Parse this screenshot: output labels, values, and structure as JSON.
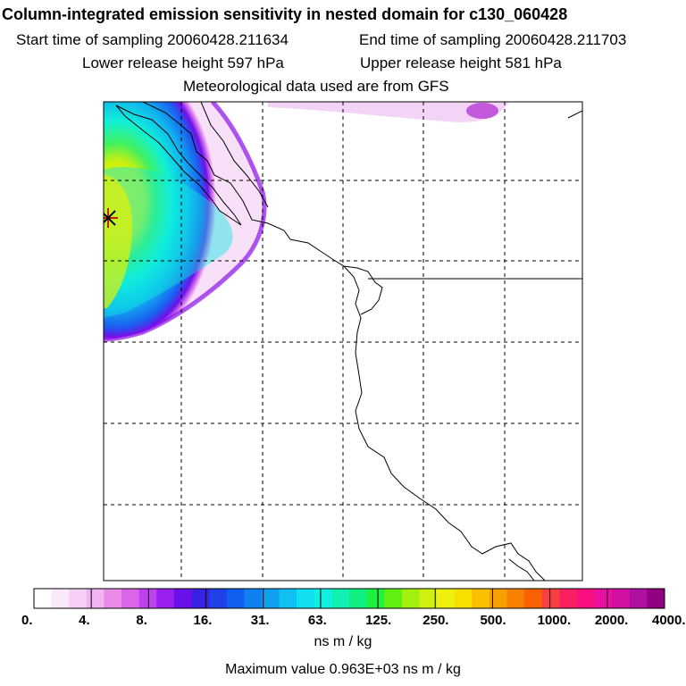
{
  "title": "Column-integrated emission sensitivity in nested domain for c130_060428",
  "start_time": "Start time of sampling 20060428.211634",
  "end_time": "End time of sampling 20060428.211703",
  "lower_height": "Lower release height  597 hPa",
  "upper_height": "Upper release height  581 hPa",
  "met_data": "Meteorological data used are from GFS",
  "colorbar": {
    "ticks": [
      "0.",
      "4.",
      "8.",
      "16.",
      "31.",
      "63.",
      "125.",
      "250.",
      "500.",
      "1000.",
      "2000.",
      "4000."
    ],
    "units": "ns m / kg",
    "colors": [
      "#ffffff",
      "#fbe8fb",
      "#f6d0f6",
      "#f0b5f0",
      "#e98ae9",
      "#d966e6",
      "#c040f0",
      "#9a20f0",
      "#6a10e8",
      "#3a20e0",
      "#2040e8",
      "#1060f0",
      "#1080f0",
      "#10a0f0",
      "#10c0f0",
      "#10e0f0",
      "#10f0e0",
      "#10f0b0",
      "#10f080",
      "#20f040",
      "#60f010",
      "#a0f010",
      "#d0f010",
      "#f0f010",
      "#f8e000",
      "#f8c000",
      "#f8a000",
      "#f88000",
      "#f86000",
      "#f84040",
      "#f82060",
      "#f81080",
      "#e810a0",
      "#d010a0",
      "#b010a0",
      "#900080"
    ]
  },
  "max_value": "Maximum value  0.963E+03 ns m / kg",
  "map": {
    "release_marker": "asterisk",
    "legend_colors": {
      "land": "#ffffff",
      "coast": "#000000",
      "grid": "#000000"
    }
  }
}
